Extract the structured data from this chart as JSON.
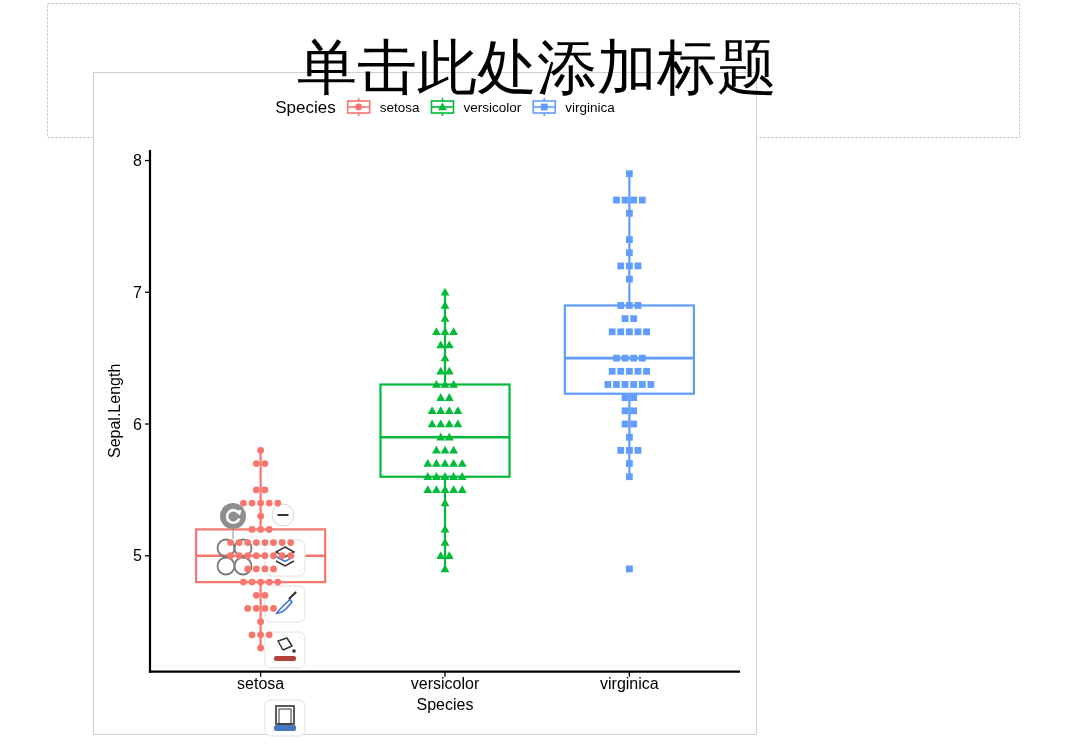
{
  "chart_data": {
    "type": "box",
    "title": "单击此处添加标题",
    "xlabel": "Species",
    "ylabel": "Sepal.Length",
    "legend_title": "Species",
    "legend": "top",
    "categories": [
      "setosa",
      "versicolor",
      "virginica"
    ],
    "colors": [
      "#f8766d",
      "#00ba38",
      "#619cff"
    ],
    "boxes": [
      {
        "low": 4.3,
        "q1": 4.8,
        "median": 5.0,
        "q3": 5.2,
        "high": 5.8
      },
      {
        "low": 4.9,
        "q1": 5.6,
        "median": 5.9,
        "q3": 6.3,
        "high": 7.0
      },
      {
        "low": 5.6,
        "q1": 6.23,
        "median": 6.5,
        "q3": 6.9,
        "high": 7.9
      }
    ],
    "ylim": [
      4.12,
      8.08
    ],
    "yticks": [
      5,
      6,
      7,
      8
    ],
    "series": [
      {
        "name": "setosa",
        "type": "scatter",
        "color": "#f8766d",
        "marker": "circle",
        "x": [
          "setosa",
          "setosa",
          "setosa",
          "setosa",
          "setosa",
          "setosa",
          "setosa",
          "setosa",
          "setosa",
          "setosa",
          "setosa",
          "setosa",
          "setosa",
          "setosa",
          "setosa",
          "setosa",
          "setosa",
          "setosa",
          "setosa",
          "setosa",
          "setosa",
          "setosa",
          "setosa",
          "setosa",
          "setosa",
          "setosa",
          "setosa",
          "setosa",
          "setosa",
          "setosa",
          "setosa",
          "setosa",
          "setosa",
          "setosa",
          "setosa",
          "setosa",
          "setosa",
          "setosa",
          "setosa",
          "setosa",
          "setosa",
          "setosa",
          "setosa",
          "setosa",
          "setosa",
          "setosa",
          "setosa",
          "setosa",
          "setosa",
          "setosa"
        ],
        "values": [
          5.1,
          4.9,
          4.7,
          4.6,
          5.0,
          5.4,
          4.6,
          5.0,
          4.4,
          4.9,
          5.4,
          4.8,
          4.8,
          4.3,
          5.8,
          5.7,
          5.4,
          5.1,
          5.7,
          5.1,
          5.4,
          5.1,
          4.6,
          5.1,
          4.8,
          5.0,
          5.0,
          5.2,
          5.2,
          4.7,
          4.8,
          5.4,
          5.2,
          5.5,
          4.9,
          5.0,
          5.5,
          4.9,
          4.4,
          5.1,
          5.0,
          4.5,
          4.4,
          5.0,
          5.1,
          4.8,
          5.1,
          4.6,
          5.3,
          5.0
        ]
      },
      {
        "name": "versicolor",
        "type": "scatter",
        "color": "#00ba38",
        "marker": "triangle",
        "x": [
          "versicolor",
          "versicolor",
          "versicolor",
          "versicolor",
          "versicolor",
          "versicolor",
          "versicolor",
          "versicolor",
          "versicolor",
          "versicolor",
          "versicolor",
          "versicolor",
          "versicolor",
          "versicolor",
          "versicolor",
          "versicolor",
          "versicolor",
          "versicolor",
          "versicolor",
          "versicolor",
          "versicolor",
          "versicolor",
          "versicolor",
          "versicolor",
          "versicolor",
          "versicolor",
          "versicolor",
          "versicolor",
          "versicolor",
          "versicolor",
          "versicolor",
          "versicolor",
          "versicolor",
          "versicolor",
          "versicolor",
          "versicolor",
          "versicolor",
          "versicolor",
          "versicolor",
          "versicolor",
          "versicolor",
          "versicolor",
          "versicolor",
          "versicolor",
          "versicolor",
          "versicolor",
          "versicolor",
          "versicolor",
          "versicolor",
          "versicolor"
        ],
        "values": [
          7.0,
          6.4,
          6.9,
          5.5,
          6.5,
          5.7,
          6.3,
          4.9,
          6.6,
          5.2,
          5.0,
          5.9,
          6.0,
          6.1,
          5.6,
          6.7,
          5.6,
          5.8,
          6.2,
          5.6,
          5.9,
          6.1,
          6.3,
          6.1,
          6.4,
          6.6,
          6.8,
          6.7,
          6.0,
          5.7,
          5.5,
          5.5,
          5.8,
          6.0,
          5.4,
          6.0,
          6.7,
          6.3,
          5.6,
          5.5,
          5.5,
          6.1,
          5.8,
          5.0,
          5.6,
          5.7,
          5.7,
          6.2,
          5.1,
          5.7
        ]
      },
      {
        "name": "virginica",
        "type": "scatter",
        "color": "#619cff",
        "marker": "square",
        "x": [
          "virginica",
          "virginica",
          "virginica",
          "virginica",
          "virginica",
          "virginica",
          "virginica",
          "virginica",
          "virginica",
          "virginica",
          "virginica",
          "virginica",
          "virginica",
          "virginica",
          "virginica",
          "virginica",
          "virginica",
          "virginica",
          "virginica",
          "virginica",
          "virginica",
          "virginica",
          "virginica",
          "virginica",
          "virginica",
          "virginica",
          "virginica",
          "virginica",
          "virginica",
          "virginica",
          "virginica",
          "virginica",
          "virginica",
          "virginica",
          "virginica",
          "virginica",
          "virginica",
          "virginica",
          "virginica",
          "virginica",
          "virginica",
          "virginica",
          "virginica",
          "virginica",
          "virginica",
          "virginica",
          "virginica",
          "virginica",
          "virginica",
          "virginica"
        ],
        "values": [
          6.3,
          5.8,
          7.1,
          6.3,
          6.5,
          7.6,
          4.9,
          7.3,
          6.7,
          7.2,
          6.5,
          6.4,
          6.8,
          5.7,
          5.8,
          6.4,
          6.5,
          7.7,
          7.7,
          6.0,
          6.9,
          5.6,
          7.7,
          6.3,
          6.7,
          7.2,
          6.2,
          6.1,
          6.4,
          7.2,
          7.4,
          7.9,
          6.4,
          6.3,
          6.1,
          7.7,
          6.3,
          6.4,
          6.0,
          6.9,
          6.7,
          6.9,
          5.8,
          6.8,
          6.7,
          6.7,
          6.3,
          6.5,
          6.2,
          5.9
        ]
      }
    ]
  }
}
